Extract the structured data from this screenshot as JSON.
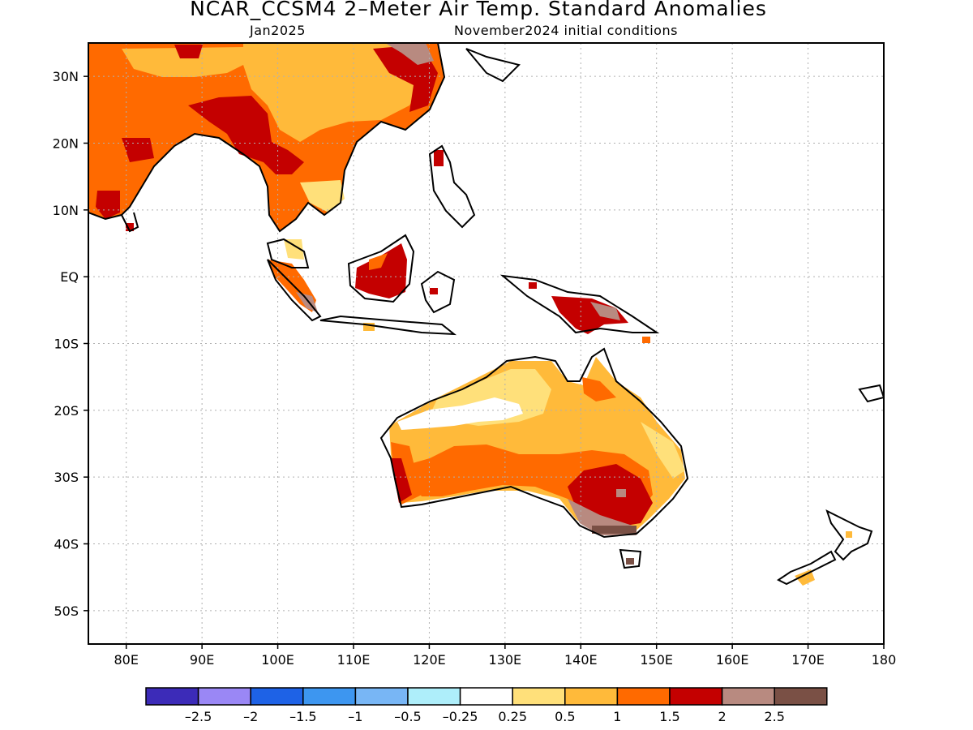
{
  "title": "NCAR_CCSM4 2–Meter Air Temp. Standard Anomalies",
  "valid_month": "Jan2025",
  "init_conditions": "November2024 initial conditions",
  "map": {
    "lon_range": [
      75,
      180
    ],
    "lat_range": [
      -55,
      35
    ],
    "lon_ticks": [
      80,
      90,
      100,
      110,
      120,
      130,
      140,
      150,
      160,
      170,
      180
    ],
    "lon_tick_labels": [
      "80E",
      "90E",
      "100E",
      "110E",
      "120E",
      "130E",
      "140E",
      "150E",
      "160E",
      "170E",
      "180"
    ],
    "lat_ticks": [
      30,
      20,
      10,
      0,
      -10,
      -20,
      -30,
      -40,
      -50
    ],
    "lat_tick_labels": [
      "30N",
      "20N",
      "10N",
      "EQ",
      "10S",
      "20S",
      "30S",
      "40S",
      "50S"
    ],
    "gridlines": true
  },
  "legend": {
    "colors": [
      "#3c2bb8",
      "#9a87f5",
      "#1e62e6",
      "#3d96f0",
      "#78b6f5",
      "#aeeefa",
      "#ffffff",
      "#ffe07a",
      "#ffba3a",
      "#ff6a00",
      "#c40000",
      "#b88a80",
      "#7a5045"
    ],
    "labels": [
      "–2.5",
      "–2",
      "–1.5",
      "–1",
      "–0.5",
      "–0.25",
      "0.25",
      "0.5",
      "1",
      "1.5",
      "2",
      "2.5"
    ]
  }
}
